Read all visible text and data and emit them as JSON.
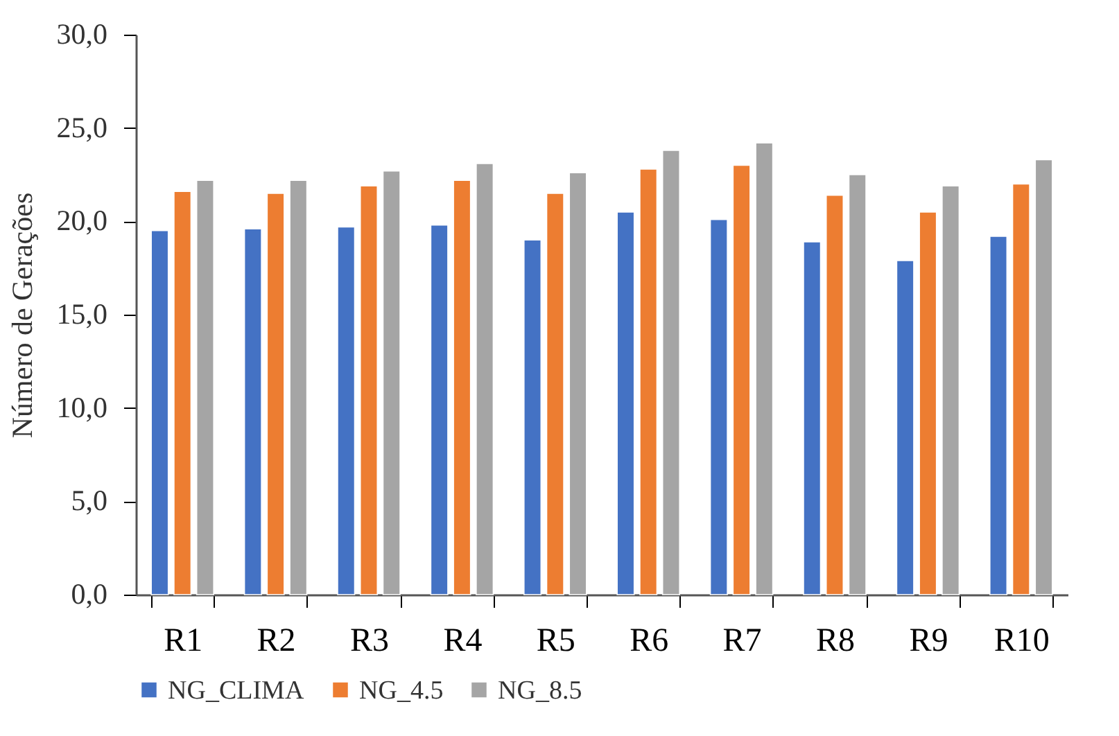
{
  "chart_data": {
    "type": "bar",
    "ylabel": "Número de Gerações",
    "categories": [
      "R1",
      "R2",
      "R3",
      "R4",
      "R5",
      "R6",
      "R7",
      "R8",
      "R9",
      "R10"
    ],
    "series": [
      {
        "name": "NG_CLIMA",
        "color": "#4472c4",
        "values": [
          19.5,
          19.6,
          19.7,
          19.8,
          19.0,
          20.5,
          20.1,
          18.9,
          17.9,
          19.2
        ]
      },
      {
        "name": "NG_4.5",
        "color": "#ed7d31",
        "values": [
          21.6,
          21.5,
          21.9,
          22.2,
          21.5,
          22.8,
          23.0,
          21.4,
          20.5,
          22.0
        ]
      },
      {
        "name": "NG_8.5",
        "color": "#a5a5a5",
        "values": [
          22.2,
          22.2,
          22.7,
          23.1,
          22.6,
          23.8,
          24.2,
          22.5,
          21.9,
          23.3
        ]
      }
    ],
    "ylim": [
      0,
      30
    ],
    "yticks": [
      {
        "value": 0,
        "label": "0,0"
      },
      {
        "value": 5,
        "label": "5,0"
      },
      {
        "value": 10,
        "label": "10,0"
      },
      {
        "value": 15,
        "label": "15,0"
      },
      {
        "value": 20,
        "label": "20,0"
      },
      {
        "value": 25,
        "label": "25,0"
      },
      {
        "value": 30,
        "label": "30,0"
      }
    ],
    "grid": false,
    "legend": "bottom"
  }
}
